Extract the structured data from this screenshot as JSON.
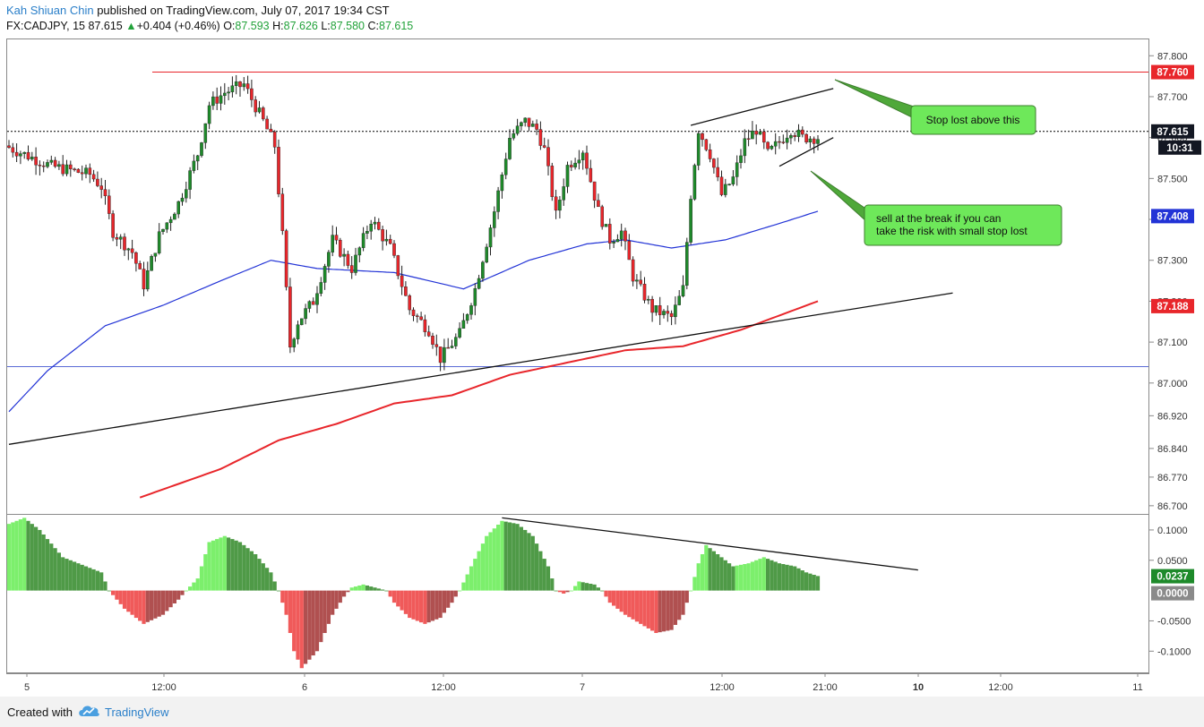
{
  "header": {
    "author": "Kah Shiuan Chin",
    "published": "published on TradingView.com, July 07, 2017 19:34 CST",
    "symbol": "FX:CADJPY, 15",
    "last": "87.615",
    "arrow": "▲",
    "change": "+0.404 (+0.46%)",
    "o_label": "O:",
    "o": "87.593",
    "h_label": "H:",
    "h": "87.626",
    "l_label": "L:",
    "l": "87.580",
    "c_label": "C:",
    "c": "87.615"
  },
  "footer": {
    "created": "Created with",
    "brand": "TradingView"
  },
  "chart_data": {
    "type": "candlestick",
    "symbol": "FX:CADJPY",
    "interval": "15",
    "price_axis": {
      "ticks": [
        "87.800",
        "87.700",
        "87.600",
        "87.500",
        "87.400",
        "87.300",
        "87.200",
        "87.100",
        "87.000",
        "86.920",
        "86.840",
        "86.770",
        "86.700"
      ],
      "tick_values": [
        87.8,
        87.7,
        87.6,
        87.5,
        87.4,
        87.3,
        87.2,
        87.1,
        87.0,
        86.92,
        86.84,
        86.77,
        86.7
      ],
      "range": [
        86.68,
        87.84
      ]
    },
    "time_axis": {
      "labels": [
        "5",
        "12:00",
        "6",
        "12:00",
        "7",
        "12:00",
        "21:00",
        "10",
        "12:00",
        "11"
      ]
    },
    "price_badges": {
      "resistance": {
        "label": "87.760",
        "color": "#e8262b"
      },
      "last": {
        "label": "87.615",
        "color": "#131722"
      },
      "countdown": {
        "label": "10:31",
        "color": "#131722"
      },
      "ma_blue": {
        "label": "87.408",
        "color": "#2233d6"
      },
      "ma_red": {
        "label": "87.188",
        "color": "#e8262b"
      }
    },
    "horizontal_lines": [
      {
        "name": "resistance",
        "price": 87.76,
        "color": "#e8262b"
      },
      {
        "name": "last-price",
        "price": 87.615,
        "color": "#000000",
        "style": "dotted"
      },
      {
        "name": "blue-level",
        "price": 87.04,
        "color": "#5a6bd6"
      }
    ],
    "trendlines": [
      {
        "name": "ascending-support",
        "points": [
          [
            0,
            86.85
          ],
          [
            245,
            87.22
          ]
        ]
      },
      {
        "name": "channel-upper",
        "points": [
          [
            177,
            87.63
          ],
          [
            214,
            87.72
          ]
        ]
      },
      {
        "name": "channel-lower",
        "points": [
          [
            200,
            87.53
          ],
          [
            214,
            87.6
          ]
        ]
      }
    ],
    "annotations": [
      {
        "name": "stop-callout",
        "text": "Stop lost above this"
      },
      {
        "name": "sell-callout",
        "text": "sell at the break if you can take the risk with small stop lost"
      }
    ],
    "moving_averages": [
      {
        "name": "ma-blue",
        "color": "#2233d6",
        "anchors": [
          [
            0,
            86.93
          ],
          [
            10,
            87.03
          ],
          [
            25,
            87.14
          ],
          [
            40,
            87.19
          ],
          [
            55,
            87.25
          ],
          [
            68,
            87.3
          ],
          [
            80,
            87.28
          ],
          [
            100,
            87.27
          ],
          [
            118,
            87.23
          ],
          [
            135,
            87.3
          ],
          [
            150,
            87.34
          ],
          [
            160,
            87.35
          ],
          [
            172,
            87.33
          ],
          [
            186,
            87.35
          ],
          [
            200,
            87.39
          ],
          [
            210,
            87.42
          ]
        ]
      },
      {
        "name": "ma-red",
        "color": "#e8262b",
        "anchors": [
          [
            34,
            86.72
          ],
          [
            55,
            86.79
          ],
          [
            70,
            86.86
          ],
          [
            85,
            86.9
          ],
          [
            100,
            86.95
          ],
          [
            115,
            86.97
          ],
          [
            130,
            87.02
          ],
          [
            145,
            87.05
          ],
          [
            160,
            87.08
          ],
          [
            175,
            87.09
          ],
          [
            190,
            87.13
          ],
          [
            210,
            87.2
          ]
        ]
      }
    ],
    "price_anchors": [
      [
        0,
        87.58
      ],
      [
        12,
        87.53
      ],
      [
        22,
        87.51
      ],
      [
        25,
        87.48
      ],
      [
        28,
        87.37
      ],
      [
        33,
        87.32
      ],
      [
        36,
        87.24
      ],
      [
        40,
        87.36
      ],
      [
        45,
        87.44
      ],
      [
        50,
        87.56
      ],
      [
        53,
        87.68
      ],
      [
        57,
        87.71
      ],
      [
        62,
        87.73
      ],
      [
        67,
        87.64
      ],
      [
        70,
        87.58
      ],
      [
        72,
        87.36
      ],
      [
        74,
        87.09
      ],
      [
        76,
        87.15
      ],
      [
        80,
        87.2
      ],
      [
        85,
        87.35
      ],
      [
        90,
        87.28
      ],
      [
        95,
        87.4
      ],
      [
        100,
        87.33
      ],
      [
        105,
        87.18
      ],
      [
        110,
        87.13
      ],
      [
        113,
        87.06
      ],
      [
        118,
        87.12
      ],
      [
        122,
        87.23
      ],
      [
        127,
        87.42
      ],
      [
        131,
        87.6
      ],
      [
        135,
        87.64
      ],
      [
        138,
        87.62
      ],
      [
        140,
        87.57
      ],
      [
        143,
        87.41
      ],
      [
        146,
        87.53
      ],
      [
        150,
        87.57
      ],
      [
        154,
        87.42
      ],
      [
        157,
        87.35
      ],
      [
        160,
        87.37
      ],
      [
        163,
        87.26
      ],
      [
        168,
        87.18
      ],
      [
        173,
        87.16
      ],
      [
        176,
        87.23
      ],
      [
        178,
        87.46
      ],
      [
        180,
        87.62
      ],
      [
        183,
        87.56
      ],
      [
        186,
        87.46
      ],
      [
        189,
        87.5
      ],
      [
        192,
        87.59
      ],
      [
        195,
        87.62
      ],
      [
        198,
        87.56
      ],
      [
        201,
        87.59
      ],
      [
        204,
        87.62
      ],
      [
        207,
        87.6
      ],
      [
        210,
        87.6
      ]
    ],
    "indicator": {
      "type": "histogram",
      "ticks": [
        "0.1000",
        "0.0500",
        "0.0000",
        "-0.0500",
        "-0.1000"
      ],
      "tick_values": [
        0.1,
        0.05,
        0.0,
        -0.05,
        -0.1
      ],
      "range": [
        -0.135,
        0.125
      ],
      "current": "0.0237",
      "zero": "0.0000",
      "trendline": [
        [
          128,
          0.12
        ],
        [
          236,
          0.034
        ]
      ],
      "anchors": [
        [
          0,
          0.11
        ],
        [
          4,
          0.12
        ],
        [
          8,
          0.1
        ],
        [
          14,
          0.055
        ],
        [
          20,
          0.04
        ],
        [
          24,
          0.03
        ],
        [
          26,
          0.0
        ],
        [
          30,
          -0.03
        ],
        [
          35,
          -0.055
        ],
        [
          40,
          -0.04
        ],
        [
          44,
          -0.015
        ],
        [
          46,
          0.0
        ],
        [
          49,
          0.02
        ],
        [
          52,
          0.08
        ],
        [
          56,
          0.09
        ],
        [
          60,
          0.08
        ],
        [
          64,
          0.06
        ],
        [
          68,
          0.03
        ],
        [
          70,
          0.0
        ],
        [
          72,
          -0.04
        ],
        [
          74,
          -0.1
        ],
        [
          76,
          -0.128
        ],
        [
          80,
          -0.1
        ],
        [
          84,
          -0.04
        ],
        [
          87,
          -0.01
        ],
        [
          89,
          0.005
        ],
        [
          92,
          0.01
        ],
        [
          95,
          0.005
        ],
        [
          98,
          0.0
        ],
        [
          100,
          -0.02
        ],
        [
          104,
          -0.045
        ],
        [
          108,
          -0.055
        ],
        [
          112,
          -0.045
        ],
        [
          115,
          -0.02
        ],
        [
          117,
          0.0
        ],
        [
          120,
          0.04
        ],
        [
          124,
          0.09
        ],
        [
          128,
          0.115
        ],
        [
          132,
          0.11
        ],
        [
          136,
          0.09
        ],
        [
          140,
          0.04
        ],
        [
          142,
          0.0
        ],
        [
          144,
          -0.005
        ],
        [
          146,
          0.0
        ],
        [
          148,
          0.015
        ],
        [
          152,
          0.01
        ],
        [
          154,
          0.0
        ],
        [
          156,
          -0.02
        ],
        [
          160,
          -0.04
        ],
        [
          164,
          -0.055
        ],
        [
          168,
          -0.07
        ],
        [
          172,
          -0.065
        ],
        [
          175,
          -0.04
        ],
        [
          177,
          0.0
        ],
        [
          179,
          0.045
        ],
        [
          181,
          0.075
        ],
        [
          184,
          0.06
        ],
        [
          188,
          0.04
        ],
        [
          192,
          0.045
        ],
        [
          196,
          0.055
        ],
        [
          200,
          0.045
        ],
        [
          204,
          0.04
        ],
        [
          207,
          0.03
        ],
        [
          210,
          0.024
        ]
      ]
    }
  }
}
